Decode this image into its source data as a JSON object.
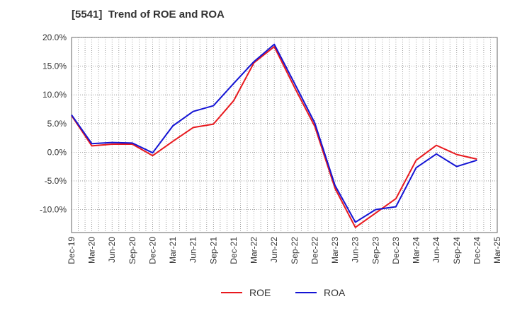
{
  "chart_data": {
    "type": "line",
    "title": "[5541]  Trend of ROE and ROA",
    "xlabel": "",
    "ylabel": "",
    "categories": [
      "Dec-19",
      "Mar-20",
      "Jun-20",
      "Sep-20",
      "Dec-20",
      "Mar-21",
      "Jun-21",
      "Sep-21",
      "Dec-21",
      "Mar-22",
      "Jun-22",
      "Sep-22",
      "Dec-22",
      "Mar-23",
      "Jun-23",
      "Sep-23",
      "Dec-23",
      "Mar-24",
      "Jun-24",
      "Sep-24",
      "Dec-24",
      "Mar-25"
    ],
    "ylim": [
      -14.0,
      20.0
    ],
    "yticks": [
      20.0,
      15.0,
      10.0,
      5.0,
      0.0,
      -5.0,
      -10.0
    ],
    "ytick_labels": [
      "20.0%",
      "15.0%",
      "10.0%",
      "5.0%",
      "0.0%",
      "-5.0%",
      "-10.0%"
    ],
    "grid": true,
    "legend_position": "bottom-center",
    "series": [
      {
        "name": "ROE",
        "color": "#e8191e",
        "values": [
          6.4,
          1.1,
          1.4,
          1.4,
          -0.6,
          1.9,
          4.3,
          4.9,
          9.0,
          15.6,
          18.4,
          11.3,
          4.5,
          -6.3,
          -13.1,
          -10.6,
          -8.1,
          -1.4,
          1.2,
          -0.4,
          -1.2,
          null
        ]
      },
      {
        "name": "ROA",
        "color": "#1414d4",
        "values": [
          6.5,
          1.5,
          1.7,
          1.6,
          -0.1,
          4.6,
          7.1,
          8.1,
          12.0,
          15.8,
          18.8,
          12.0,
          5.1,
          -5.8,
          -12.2,
          -10.0,
          -9.5,
          -2.7,
          -0.3,
          -2.5,
          -1.4,
          null
        ]
      }
    ]
  }
}
